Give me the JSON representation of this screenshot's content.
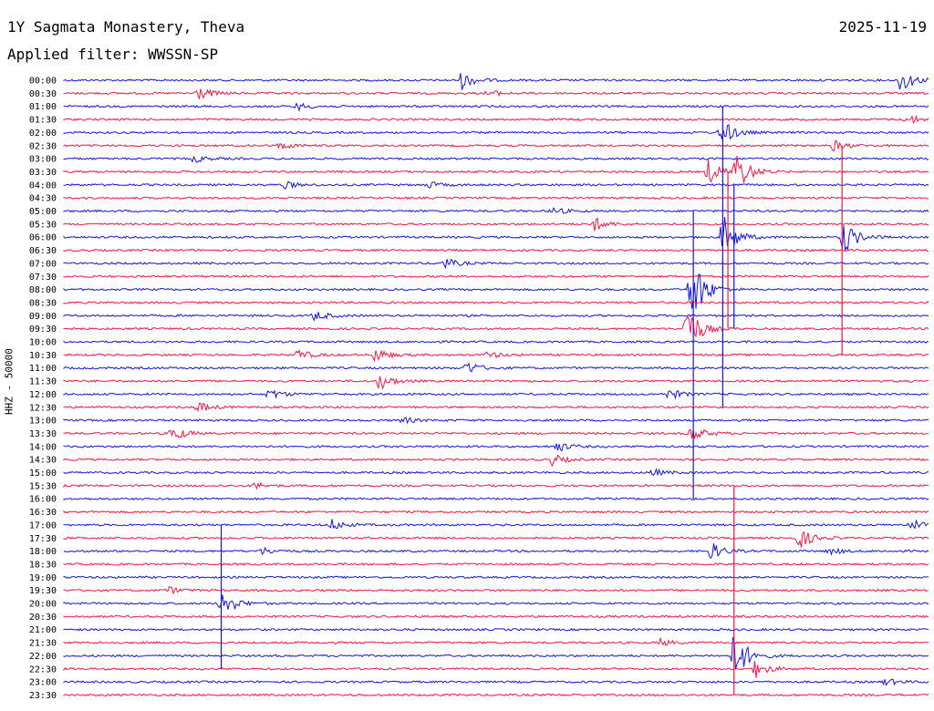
{
  "header": {
    "title": "1Y Sagmata Monastery, Theva",
    "date": "2025-11-19",
    "filter": "Applied filter: WWSSN-SP"
  },
  "chart_data": {
    "type": "line",
    "ylabel": "HHZ - 50000",
    "colors": {
      "even": "#1414e6",
      "odd": "#ff1444"
    },
    "rows": [
      "00:00",
      "00:30",
      "01:00",
      "01:30",
      "02:00",
      "02:30",
      "03:00",
      "03:30",
      "04:00",
      "04:30",
      "05:00",
      "05:30",
      "06:00",
      "06:30",
      "07:00",
      "07:30",
      "08:00",
      "08:30",
      "09:00",
      "09:30",
      "10:00",
      "10:30",
      "11:00",
      "11:30",
      "12:00",
      "12:30",
      "13:00",
      "13:30",
      "14:00",
      "14:30",
      "15:00",
      "15:30",
      "16:00",
      "16:30",
      "17:00",
      "17:30",
      "18:00",
      "18:30",
      "19:00",
      "19:30",
      "20:00",
      "20:30",
      "21:00",
      "21:30",
      "22:00",
      "22:30",
      "23:00",
      "23:30"
    ],
    "events": [
      {
        "row": 0,
        "x": 0.46,
        "amp": 10
      },
      {
        "row": 0,
        "x": 0.968,
        "amp": 14
      },
      {
        "row": 1,
        "x": 0.155,
        "amp": 8
      },
      {
        "row": 1,
        "x": 0.49,
        "amp": 4
      },
      {
        "row": 2,
        "x": 0.27,
        "amp": 4
      },
      {
        "row": 3,
        "x": 0.975,
        "amp": 6
      },
      {
        "row": 4,
        "x": 0.76,
        "amp": 16
      },
      {
        "row": 5,
        "x": 0.25,
        "amp": 4
      },
      {
        "row": 5,
        "x": 0.89,
        "amp": 6
      },
      {
        "row": 6,
        "x": 0.15,
        "amp": 4
      },
      {
        "row": 7,
        "x": 0.745,
        "amp": 14
      },
      {
        "row": 7,
        "x": 0.777,
        "amp": 24
      },
      {
        "row": 8,
        "x": 0.255,
        "amp": 4
      },
      {
        "row": 8,
        "x": 0.42,
        "amp": 4
      },
      {
        "row": 10,
        "x": 0.565,
        "amp": 4
      },
      {
        "row": 11,
        "x": 0.613,
        "amp": 8
      },
      {
        "row": 12,
        "x": 0.762,
        "amp": 26
      },
      {
        "row": 12,
        "x": 0.9,
        "amp": 22
      },
      {
        "row": 14,
        "x": 0.44,
        "amp": 6
      },
      {
        "row": 16,
        "x": 0.725,
        "amp": 45
      },
      {
        "row": 18,
        "x": 0.29,
        "amp": 6
      },
      {
        "row": 19,
        "x": 0.72,
        "amp": 30
      },
      {
        "row": 21,
        "x": 0.27,
        "amp": 6
      },
      {
        "row": 21,
        "x": 0.36,
        "amp": 8
      },
      {
        "row": 21,
        "x": 0.49,
        "amp": 4
      },
      {
        "row": 22,
        "x": 0.465,
        "amp": 8
      },
      {
        "row": 23,
        "x": 0.365,
        "amp": 10
      },
      {
        "row": 24,
        "x": 0.237,
        "amp": 6
      },
      {
        "row": 24,
        "x": 0.7,
        "amp": 6
      },
      {
        "row": 25,
        "x": 0.155,
        "amp": 6
      },
      {
        "row": 26,
        "x": 0.39,
        "amp": 4
      },
      {
        "row": 27,
        "x": 0.125,
        "amp": 10
      },
      {
        "row": 27,
        "x": 0.725,
        "amp": 10
      },
      {
        "row": 28,
        "x": 0.57,
        "amp": 6
      },
      {
        "row": 29,
        "x": 0.565,
        "amp": 6
      },
      {
        "row": 30,
        "x": 0.68,
        "amp": 4
      },
      {
        "row": 31,
        "x": 0.22,
        "amp": 4
      },
      {
        "row": 34,
        "x": 0.31,
        "amp": 6
      },
      {
        "row": 34,
        "x": 0.98,
        "amp": 6
      },
      {
        "row": 35,
        "x": 0.85,
        "amp": 12
      },
      {
        "row": 36,
        "x": 0.23,
        "amp": 4
      },
      {
        "row": 36,
        "x": 0.748,
        "amp": 10
      },
      {
        "row": 36,
        "x": 0.885,
        "amp": 4
      },
      {
        "row": 39,
        "x": 0.12,
        "amp": 4
      },
      {
        "row": 40,
        "x": 0.182,
        "amp": 18
      },
      {
        "row": 43,
        "x": 0.69,
        "amp": 4
      },
      {
        "row": 44,
        "x": 0.775,
        "amp": 30
      },
      {
        "row": 45,
        "x": 0.8,
        "amp": 10
      },
      {
        "row": 46,
        "x": 0.95,
        "amp": 4
      }
    ],
    "spikes": [
      {
        "x": 0.762,
        "from_row": 2,
        "to_row": 25
      },
      {
        "x": 0.768,
        "from_row": 7,
        "to_row": 19
      },
      {
        "x": 0.775,
        "from_row": 8,
        "to_row": 19
      },
      {
        "x": 0.9,
        "from_row": 5,
        "to_row": 21
      },
      {
        "x": 0.728,
        "from_row": 10,
        "to_row": 32
      },
      {
        "x": 0.182,
        "from_row": 34,
        "to_row": 45
      },
      {
        "x": 0.775,
        "from_row": 31,
        "to_row": 47
      }
    ]
  }
}
